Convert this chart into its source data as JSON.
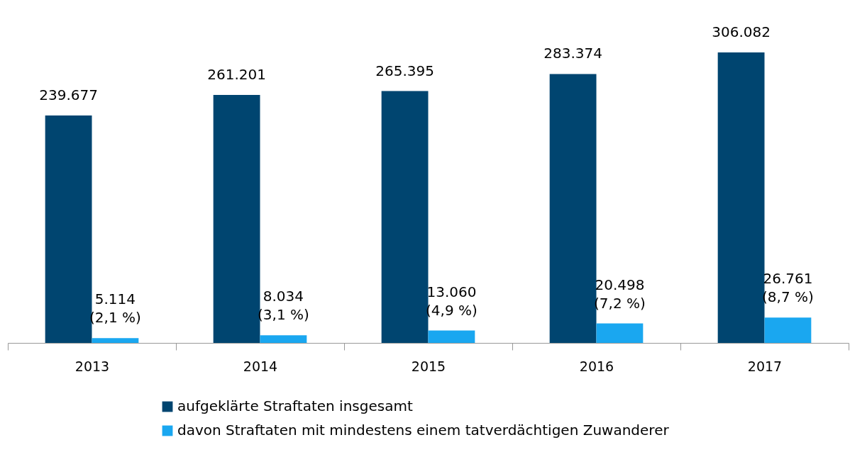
{
  "chart_data": {
    "type": "bar",
    "categories": [
      "2013",
      "2014",
      "2015",
      "2016",
      "2017"
    ],
    "series": [
      {
        "name": "aufgeklärte Straftaten insgesamt",
        "color": "#004570",
        "values": [
          239677,
          261201,
          265395,
          283374,
          306082
        ],
        "value_labels": [
          "239.677",
          "261.201",
          "265.395",
          "283.374",
          "306.082"
        ]
      },
      {
        "name": "davon Straftaten mit mindestens einem tatverdächtigen Zuwanderer",
        "color": "#1aa7f0",
        "values": [
          5114,
          8034,
          13060,
          20498,
          26761
        ],
        "value_labels": [
          "5.114\n(2,1 %)",
          "8.034\n(3,1 %)",
          "13.060\n(4,9 %)",
          "20.498\n(7,2 %)",
          "26.761\n(8,7 %)"
        ]
      }
    ],
    "legend": "bottom"
  }
}
